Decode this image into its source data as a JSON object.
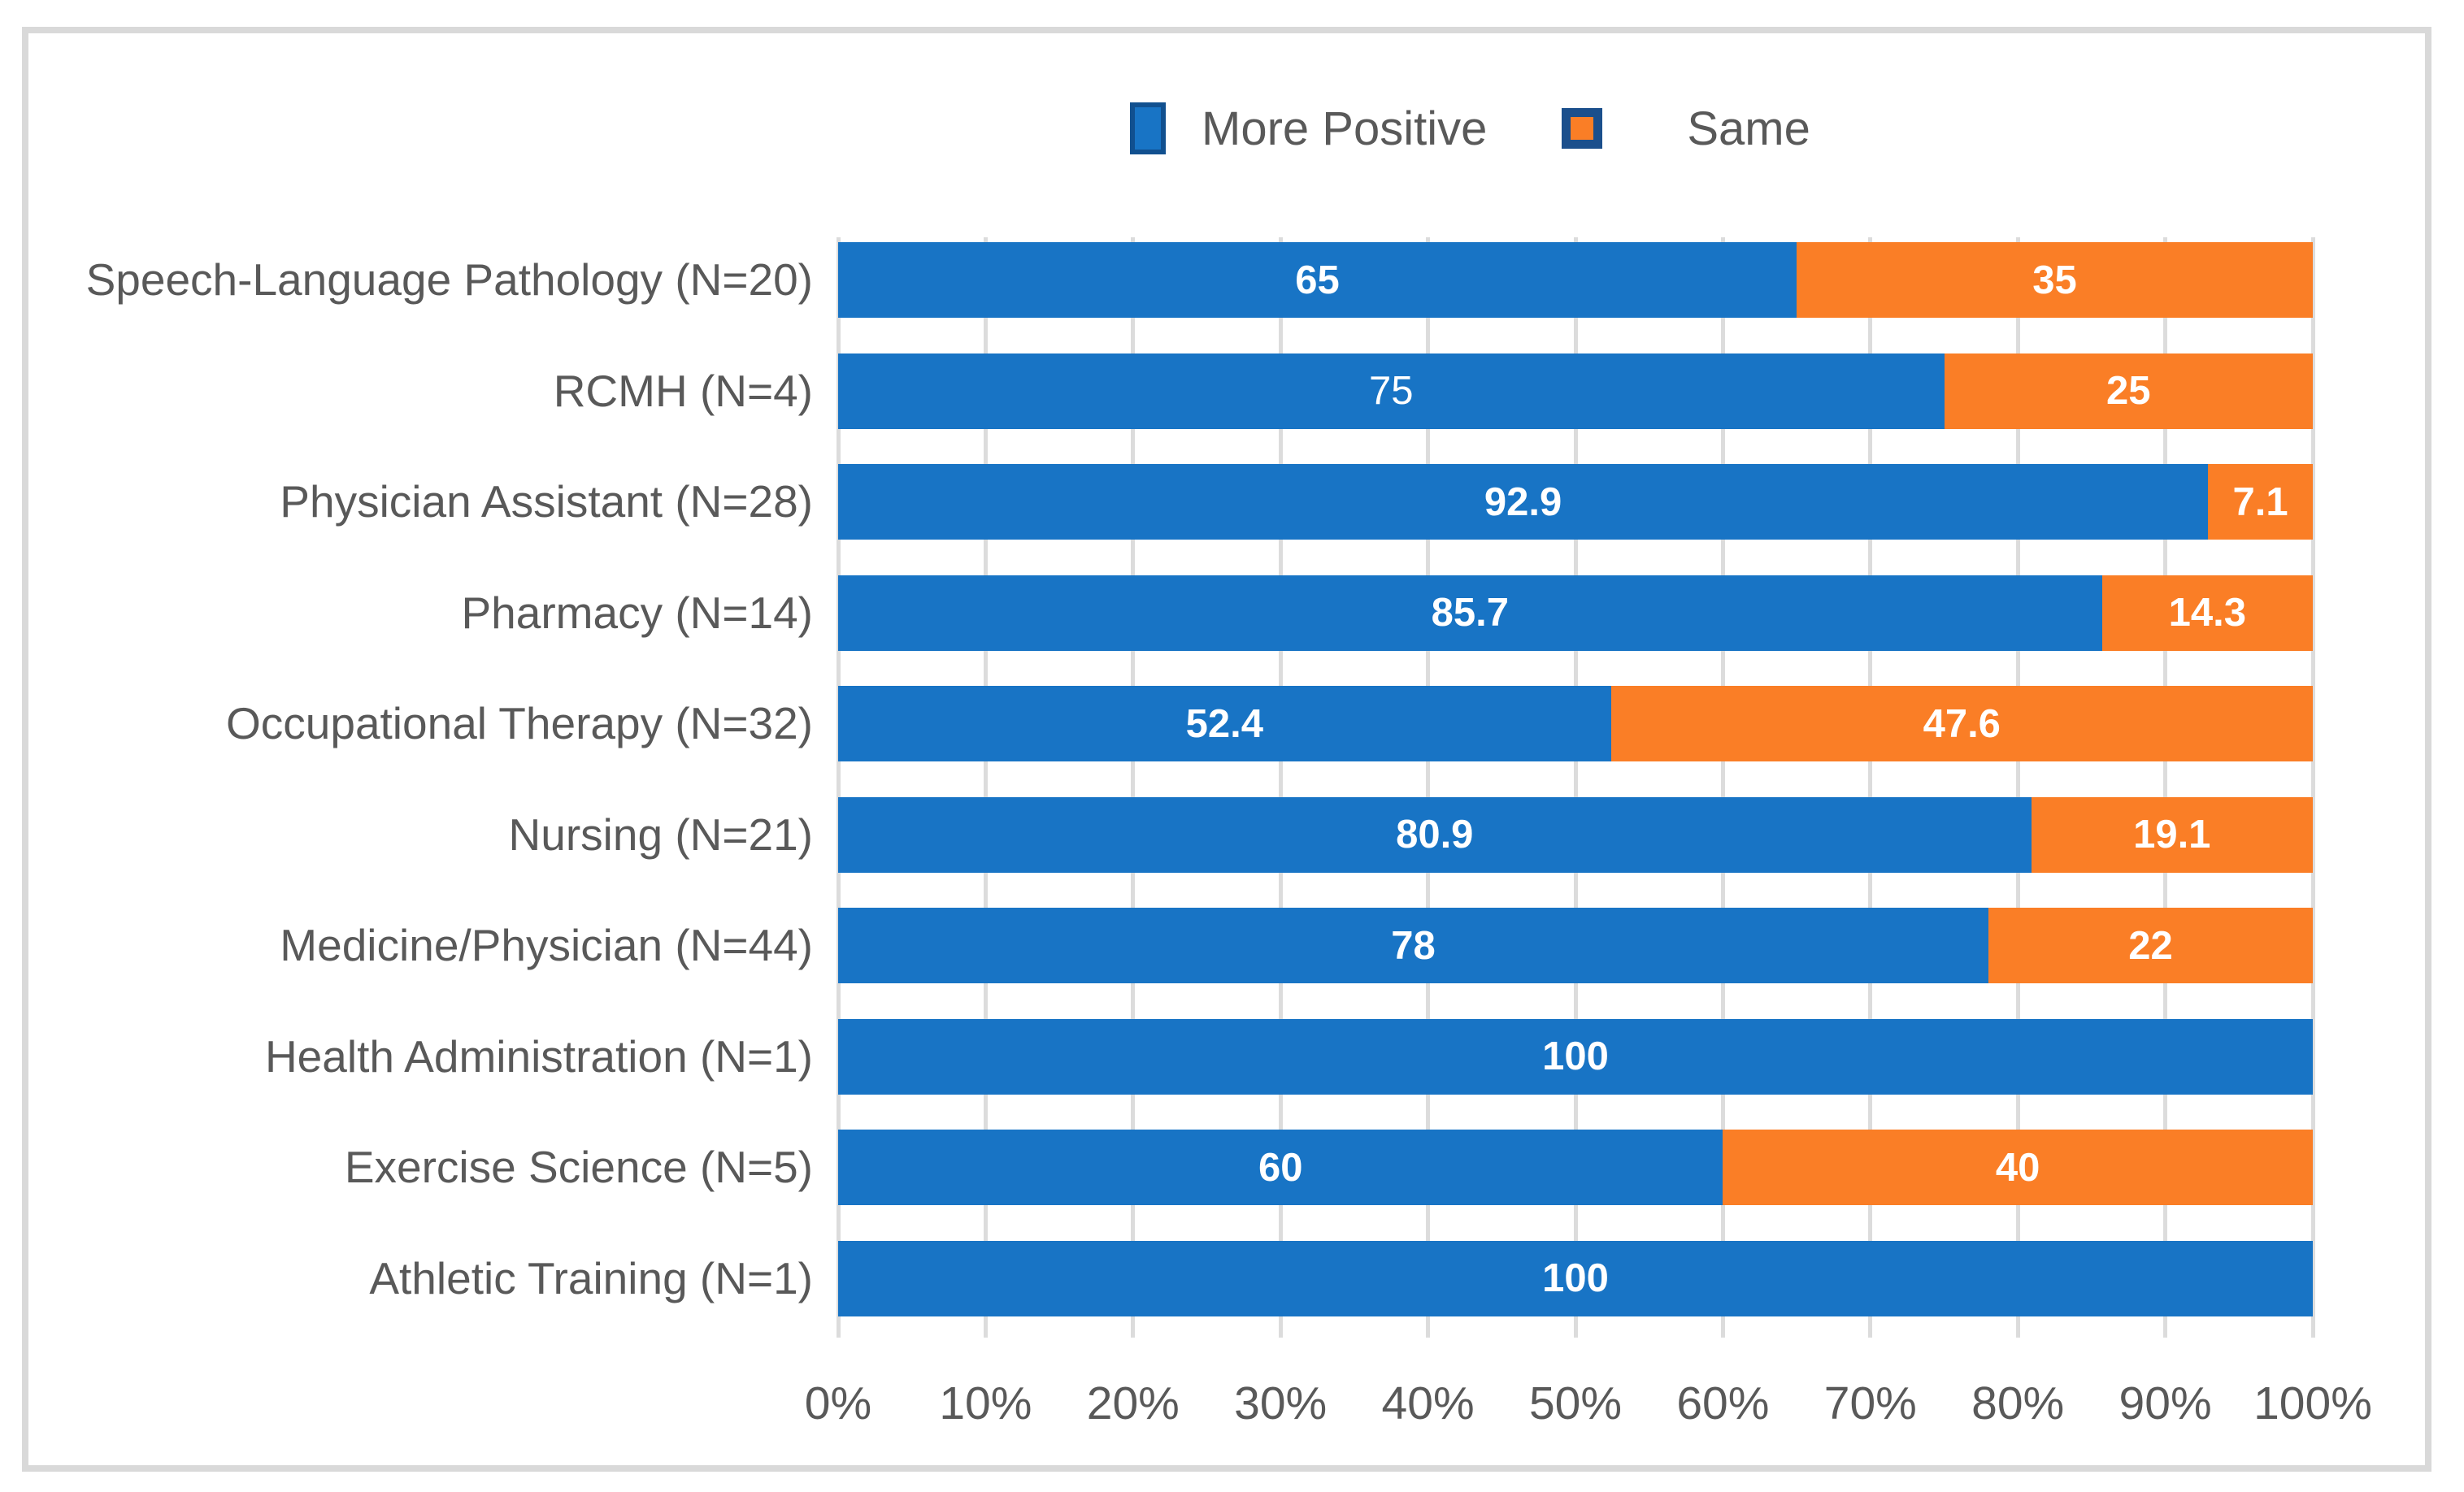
{
  "chart_data": {
    "type": "bar",
    "orientation": "horizontal",
    "stacked": true,
    "title": "",
    "xlabel": "",
    "ylabel": "",
    "xlim": [
      0,
      100
    ],
    "grid": true,
    "legend_position": "top",
    "x_ticks": [
      "0%",
      "10%",
      "20%",
      "30%",
      "40%",
      "50%",
      "60%",
      "70%",
      "80%",
      "90%",
      "100%"
    ],
    "categories": [
      "Speech-Language Pathology (N=20)",
      "RCMH (N=4)",
      "Physician Assistant (N=28)",
      "Pharmacy (N=14)",
      "Occupational Therapy (N=32)",
      "Nursing (N=21)",
      "Medicine/Physician (N=44)",
      "Health Administration (N=1)",
      "Exercise Science (N=5)",
      "Athletic Training (N=1)"
    ],
    "series": [
      {
        "name": "More Positive",
        "color": "#1874C5",
        "values": [
          65,
          75,
          92.9,
          85.7,
          52.4,
          80.9,
          78,
          100,
          60,
          100
        ],
        "labels": [
          "65",
          "75",
          "92.9",
          "85.7",
          "52.4",
          "80.9",
          "78",
          "100",
          "60",
          "100"
        ],
        "label_weight_overrides": {
          "1": "normal"
        }
      },
      {
        "name": "Same",
        "color": "#FA7E26",
        "values": [
          35,
          25,
          7.1,
          14.3,
          47.6,
          19.1,
          22,
          0,
          40,
          0
        ],
        "labels": [
          "35",
          "25",
          "7.1",
          "14.3",
          "47.6",
          "19.1",
          "22",
          "",
          "40",
          ""
        ],
        "label_weight_overrides": {}
      }
    ]
  },
  "colors": {
    "more_positive_blue": "#1874C5",
    "same_orange": "#FA7E26",
    "legend_marker_border_navy": "#11508F",
    "gridline_gray": "#DCDCDC",
    "frame_border_gray": "#D9D9D9",
    "axis_text_gray": "#595959",
    "bar_label_white": "#FFFFFF"
  }
}
